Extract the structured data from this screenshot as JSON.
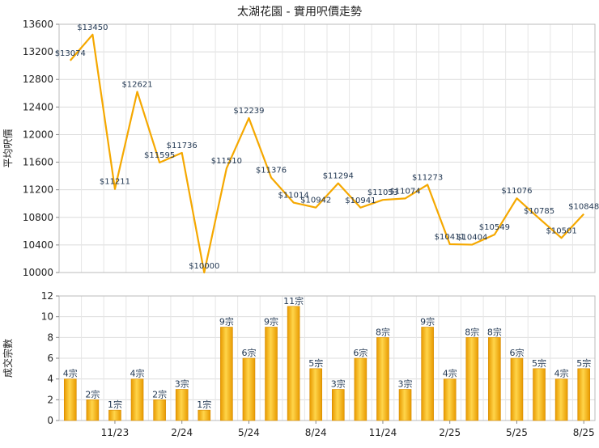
{
  "chart_data": [
    {
      "type": "line",
      "title": "太湖花園 - 實用呎價走勢",
      "ylabel": "平均呎價",
      "ylim": [
        10000,
        13600
      ],
      "yticks": [
        10000,
        10400,
        10800,
        11200,
        11600,
        12000,
        12400,
        12800,
        13200,
        13600
      ],
      "values": [
        13074,
        13450,
        11211,
        12621,
        11595,
        11736,
        10000,
        11510,
        12239,
        11376,
        11014,
        10942,
        11294,
        10941,
        11053,
        11074,
        11273,
        10411,
        10404,
        10549,
        11076,
        10785,
        10501,
        10848
      ],
      "data_labels": [
        "$13074",
        "$13450",
        "$11211",
        "$12621",
        "$11595",
        "$11736",
        "$10000",
        "$11510",
        "$12239",
        "$11376",
        "$11014",
        "$10942",
        "$11294",
        "$10941",
        "$11053",
        "$11074",
        "$11273",
        "$10411",
        "$10404",
        "$10549",
        "$11076",
        "$10785",
        "$10501",
        "$10848"
      ],
      "line_color": "#f5a800",
      "grid": true
    },
    {
      "type": "bar",
      "ylabel": "成交宗數",
      "ylim": [
        0,
        12
      ],
      "yticks": [
        0,
        2,
        4,
        6,
        8,
        10,
        12
      ],
      "values": [
        4,
        2,
        1,
        4,
        2,
        3,
        1,
        9,
        6,
        9,
        11,
        5,
        3,
        6,
        8,
        3,
        9,
        4,
        8,
        8,
        6,
        5,
        4,
        5
      ],
      "data_labels": [
        "4宗",
        "2宗",
        "1宗",
        "4宗",
        "2宗",
        "3宗",
        "1宗",
        "9宗",
        "6宗",
        "9宗",
        "11宗",
        "5宗",
        "3宗",
        "6宗",
        "8宗",
        "3宗",
        "9宗",
        "4宗",
        "8宗",
        "8宗",
        "6宗",
        "5宗",
        "4宗",
        "5宗"
      ],
      "x_tick_labels": [
        {
          "index": 2,
          "label": "11/23"
        },
        {
          "index": 5,
          "label": "2/24"
        },
        {
          "index": 8,
          "label": "5/24"
        },
        {
          "index": 11,
          "label": "8/24"
        },
        {
          "index": 14,
          "label": "11/24"
        },
        {
          "index": 17,
          "label": "2/25"
        },
        {
          "index": 20,
          "label": "5/25"
        },
        {
          "index": 23,
          "label": "8/25"
        }
      ],
      "bar_color": "#f5b400",
      "grid": true
    }
  ]
}
